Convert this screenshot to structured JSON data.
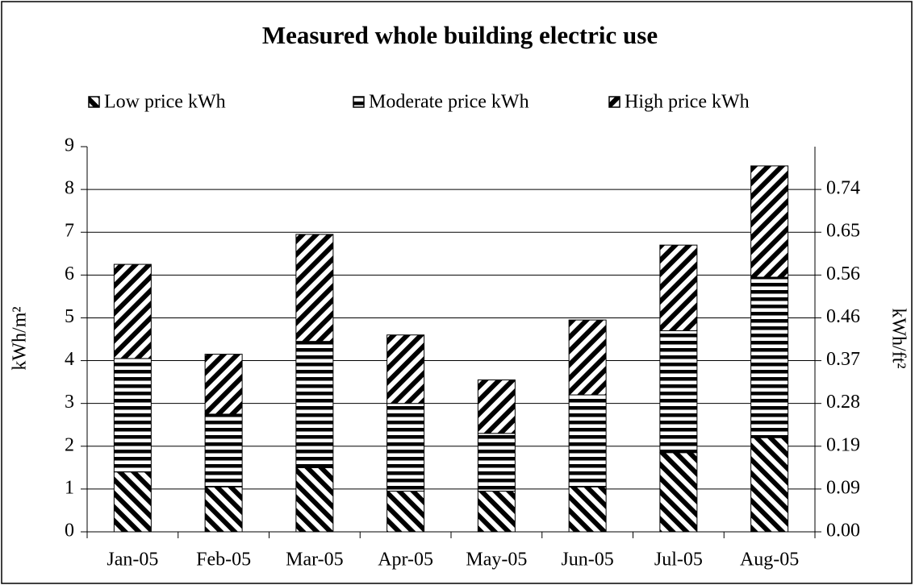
{
  "chart_data": {
    "type": "stacked-bar",
    "title": "Measured whole building electric use",
    "y_label": "kWh/m²",
    "y2_label": "kWh/ft²",
    "categories": [
      "Jan-05",
      "Feb-05",
      "Mar-05",
      "Apr-05",
      "May-05",
      "Jun-05",
      "Jul-05",
      "Aug-05"
    ],
    "series": [
      {
        "name": "Low price kWh",
        "color": "#000000",
        "pattern": "back-diagonal",
        "values": [
          1.4,
          1.05,
          1.5,
          0.95,
          0.95,
          1.05,
          1.85,
          2.2
        ]
      },
      {
        "name": "Moderate price kWh",
        "color": "#000000",
        "pattern": "horizontal",
        "values": [
          2.65,
          1.7,
          2.95,
          2.05,
          1.35,
          2.15,
          2.85,
          3.75
        ]
      },
      {
        "name": "High price kWh",
        "color": "#000000",
        "pattern": "forward-diagonal",
        "values": [
          2.2,
          1.4,
          2.5,
          1.6,
          1.25,
          1.75,
          2.0,
          2.6
        ]
      }
    ],
    "ylim": [
      0,
      9
    ],
    "yticks": [
      0,
      1,
      2,
      3,
      4,
      5,
      6,
      7,
      8,
      9
    ],
    "y2lim": [
      0,
      0.8361
    ],
    "y2ticks": [
      {
        "value": 0,
        "label": "0.00"
      },
      {
        "value": 0.0929,
        "label": "0.09"
      },
      {
        "value": 0.1858,
        "label": "0.19"
      },
      {
        "value": 0.2787,
        "label": "0.28"
      },
      {
        "value": 0.3716,
        "label": "0.37"
      },
      {
        "value": 0.4645,
        "label": "0.46"
      },
      {
        "value": 0.5574,
        "label": "0.56"
      },
      {
        "value": 0.6503,
        "label": "0.65"
      },
      {
        "value": 0.7432,
        "label": "0.74"
      }
    ],
    "grid": true,
    "legend": "top"
  }
}
